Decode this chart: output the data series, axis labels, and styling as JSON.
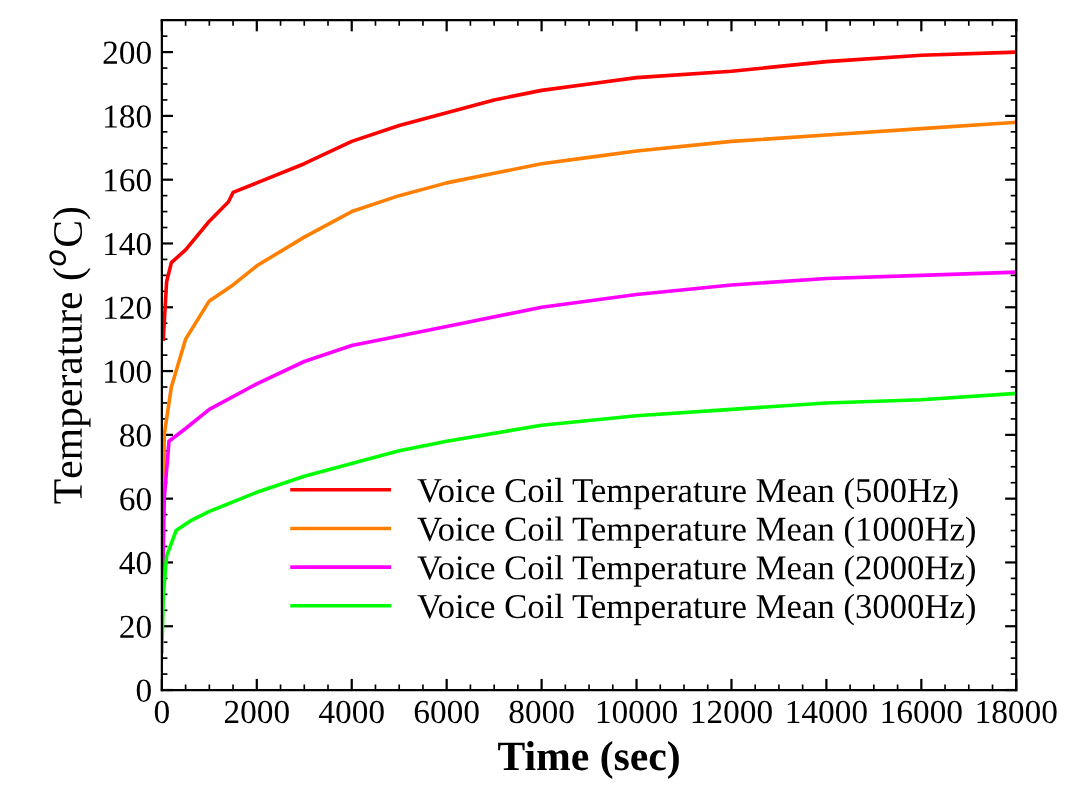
{
  "chart_data": {
    "type": "line",
    "xlabel": "Time (sec)",
    "ylabel": "Temperature ($^{o}$C)",
    "xlim": [
      0,
      18000
    ],
    "xticks": [
      0,
      2000,
      4000,
      6000,
      8000,
      10000,
      12000,
      14000,
      16000,
      18000
    ],
    "ylim": [
      0,
      210
    ],
    "yticks": [
      0,
      20,
      40,
      60,
      80,
      100,
      120,
      140,
      160,
      180,
      200
    ],
    "grid": false,
    "legend": "bottom right",
    "marker": "none",
    "line_style": "solid",
    "series": [
      {
        "name": "Voice Coil Temperature Mean (500Hz)",
        "color": "#ff0000",
        "x": [
          30,
          100,
          200,
          500,
          1000,
          1400,
          1500,
          2000,
          3000,
          4000,
          5000,
          6000,
          7000,
          8000,
          9000,
          10000,
          12000,
          14000,
          16000,
          18000
        ],
        "values": [
          110,
          128,
          134,
          138,
          147,
          153,
          156,
          159,
          165,
          172,
          177,
          181,
          185,
          188,
          190,
          192,
          194,
          197,
          199,
          200
        ]
      },
      {
        "name": "Voice Coil Temperature Mean (1000Hz)",
        "color": "#ff8000",
        "x": [
          0,
          50,
          200,
          500,
          1000,
          1500,
          2000,
          3000,
          4000,
          5000,
          6000,
          7000,
          8000,
          9000,
          10000,
          12000,
          14000,
          16000,
          18000
        ],
        "values": [
          20,
          80,
          95,
          110,
          122,
          127,
          133,
          142,
          150,
          155,
          159,
          162,
          165,
          167,
          169,
          172,
          174,
          176,
          178
        ]
      },
      {
        "name": "Voice Coil Temperature Mean (2000Hz)",
        "color": "#ff00ff",
        "x": [
          0,
          50,
          150,
          500,
          1000,
          2000,
          3000,
          4000,
          6000,
          8000,
          10000,
          12000,
          14000,
          16000,
          18000
        ],
        "values": [
          20,
          60,
          78,
          82,
          88,
          96,
          103,
          108,
          114,
          120,
          124,
          127,
          129,
          130,
          131
        ]
      },
      {
        "name": "Voice Coil Temperature Mean (3000Hz)",
        "color": "#00ff00",
        "x": [
          0,
          30,
          100,
          300,
          600,
          1000,
          2000,
          3000,
          4000,
          5000,
          6000,
          8000,
          10000,
          12000,
          14000,
          16000,
          18000
        ],
        "values": [
          12,
          30,
          42,
          50,
          53,
          56,
          62,
          67,
          71,
          75,
          78,
          83,
          86,
          88,
          90,
          91,
          93
        ]
      }
    ]
  }
}
